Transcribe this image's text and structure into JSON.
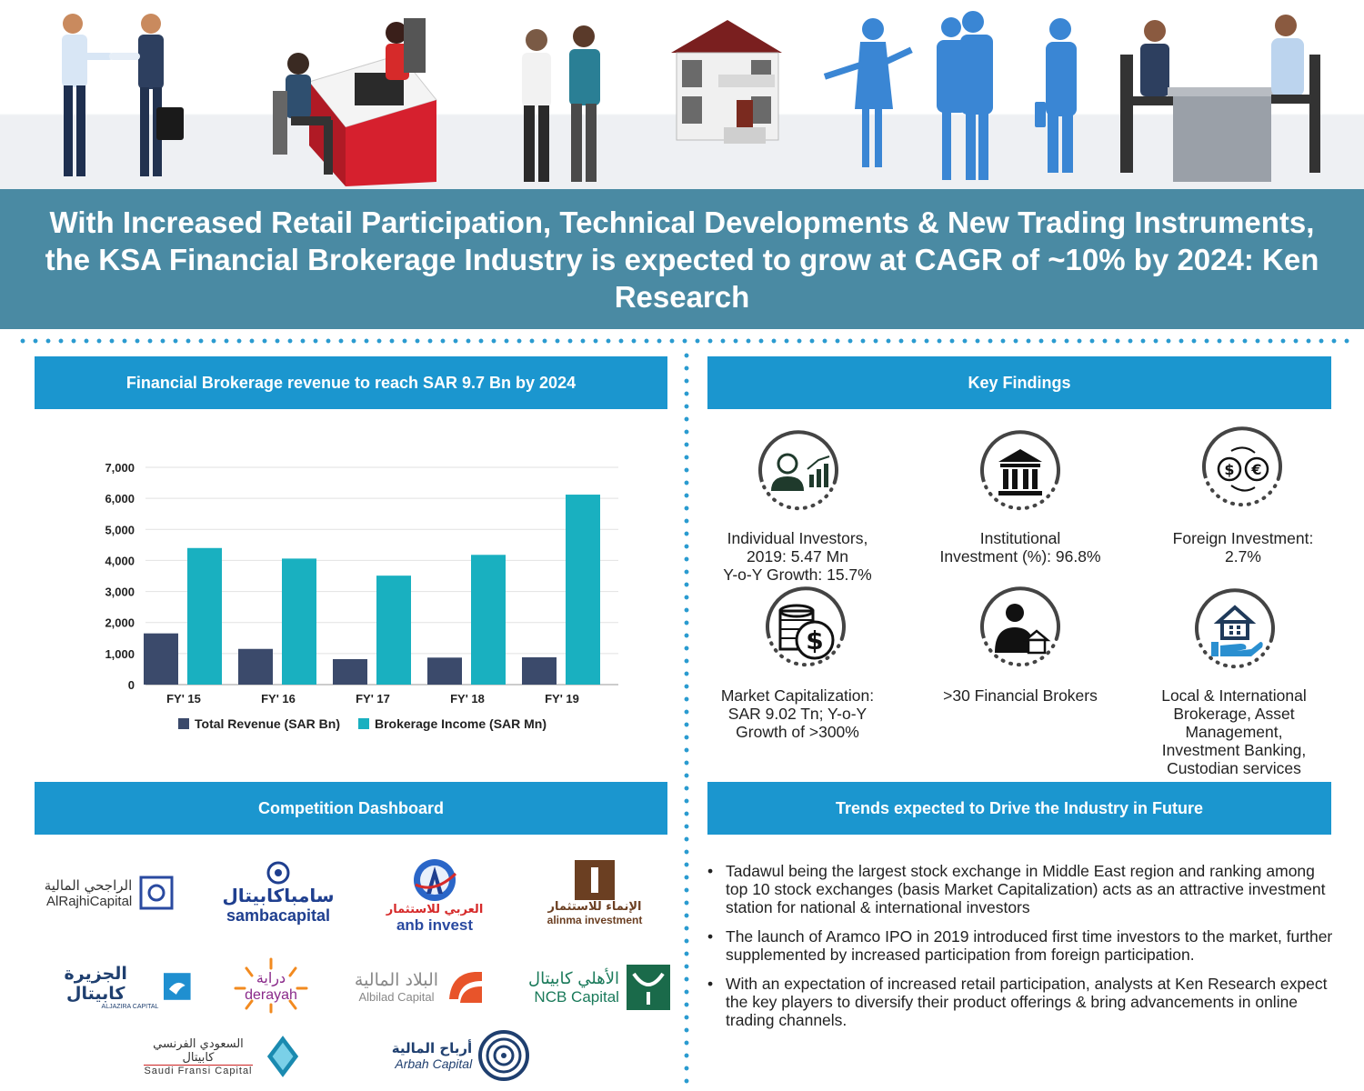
{
  "header": {
    "title": "With Increased Retail Participation, Technical Developments & New Trading Instruments, the KSA Financial Brokerage Industry is expected to grow at CAGR of ~10% by 2024: Ken Research"
  },
  "chart_section": {
    "heading": "Financial Brokerage revenue to reach SAR  9.7 Bn by 2024"
  },
  "chart_data": {
    "type": "bar",
    "categories": [
      "FY' 15",
      "FY' 16",
      "FY' 17",
      "FY' 18",
      "FY' 19"
    ],
    "series": [
      {
        "name": "Total Revenue (SAR Bn)",
        "values": [
          1650,
          1150,
          820,
          870,
          880
        ],
        "color": "#3b4a6b"
      },
      {
        "name": "Brokerage Income (SAR Mn)",
        "values": [
          4400,
          4060,
          3510,
          4180,
          6120
        ],
        "color": "#19b0c0"
      }
    ],
    "yticks": [
      "7,000",
      "6,000",
      "5,000",
      "4,000",
      "3,000",
      "2,000",
      "1,000",
      "0"
    ],
    "ylim": [
      0,
      7000
    ],
    "grid": true,
    "legend": "bottom"
  },
  "key_findings": {
    "heading": "Key Findings",
    "items": [
      {
        "icon": "investor-growth-icon",
        "lines": [
          "Individual Investors,",
          "2019: 5.47 Mn",
          "Y-o-Y Growth: 15.7%"
        ]
      },
      {
        "icon": "bank-building-icon",
        "lines": [
          "Institutional",
          "Investment (%): 96.8%"
        ]
      },
      {
        "icon": "currency-exchange-icon",
        "lines": [
          "Foreign Investment:",
          "2.7%"
        ]
      },
      {
        "icon": "coins-dollar-icon",
        "lines": [
          "Market Capitalization:",
          "SAR 9.02 Tn; Y-o-Y",
          "Growth of >300%"
        ]
      },
      {
        "icon": "broker-house-icon",
        "lines": [
          ">30 Financial Brokers"
        ]
      },
      {
        "icon": "hand-house-icon",
        "lines": [
          "Local & International",
          "Brokerage, Asset",
          "Management,",
          "Investment Banking,",
          "Custodian services"
        ]
      }
    ]
  },
  "competition": {
    "heading": "Competition  Dashboard",
    "logos": [
      {
        "arabic": "الراجحي المالية",
        "latin": "AlRajhiCapital"
      },
      {
        "arabic": "سامباكابيتال",
        "latin": "sambacapital"
      },
      {
        "arabic": "العربي للاستثمار",
        "latin": "anb invest"
      },
      {
        "arabic": "الإنماء للاستثمار",
        "latin": "alinma investment"
      },
      {
        "arabic": "الجزيرة كابيتال",
        "latin": "ALJAZIRA CAPITAL"
      },
      {
        "arabic": "دراية",
        "latin": "derayah"
      },
      {
        "arabic": "البلاد المالية",
        "latin": "Albilad Capital"
      },
      {
        "arabic": "الأهلي كابيتال",
        "latin": "NCB Capital"
      },
      {
        "arabic": "السعودي الفرنسي كابيتال",
        "latin": "Saudi Fransi Capital"
      },
      {
        "arabic": "أرباح المالية",
        "latin": "Arbah Capital"
      }
    ]
  },
  "trends": {
    "heading": "Trends expected to Drive the Industry in Future",
    "bullet": "•",
    "items": [
      "Tadawul being the largest stock exchange in Middle East region and ranking among top 10 stock exchanges (basis Market Capitalization) acts as an attractive investment station for national & international investors",
      "The launch of Aramco IPO in 2019 introduced first time investors to the market, further supplemented by increased participation from foreign participation.",
      "With an expectation of increased retail participation, analysts at Ken Research expect the key players to diversify their product offerings & bring advancements in online trading channels."
    ]
  },
  "colors": {
    "banner": "#4a8aa3",
    "section_header": "#1b96cf",
    "dots": "#2a9bd0",
    "icon_dark": "#1f3a2c",
    "people_blue": "#3a86d4"
  }
}
